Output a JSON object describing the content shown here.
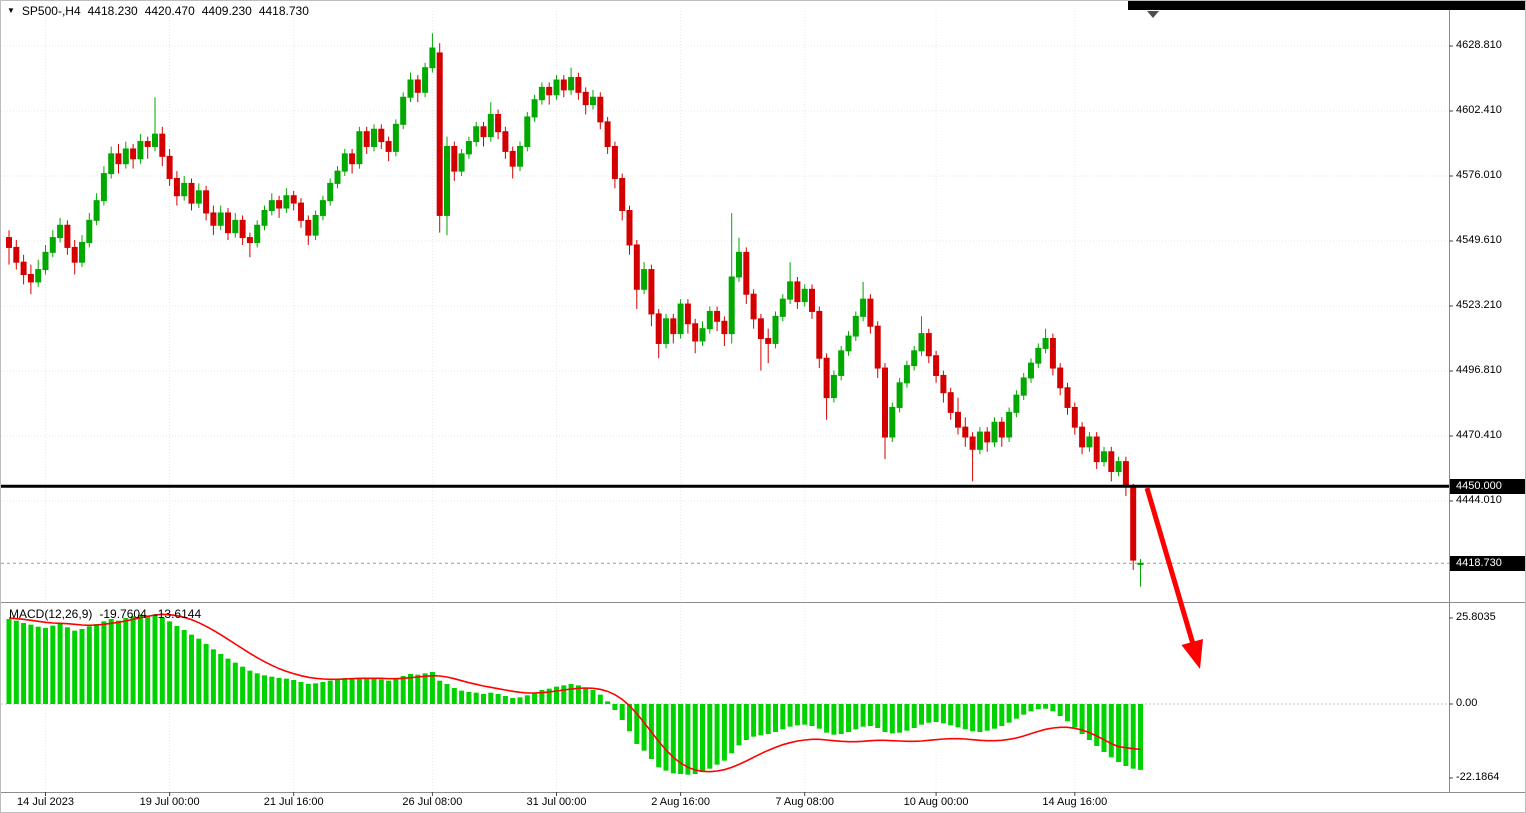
{
  "header": {
    "collapse_icon": "▼",
    "symbol_with_period": "SP500-,H4",
    "open": "4418.230",
    "high": "4420.470",
    "low": "4409.230",
    "close": "4418.730"
  },
  "price_axis": {
    "ticks": [
      "4628.810",
      "4602.410",
      "4576.010",
      "4549.610",
      "4523.210",
      "4496.810",
      "4470.410",
      "4444.010"
    ],
    "hline_badge": "4450.000",
    "price_badge": "4418.730"
  },
  "macd_axis": {
    "ticks": [
      "25.8035",
      "0.00",
      "-22.1864"
    ]
  },
  "chart_data": {
    "type": "candlestick",
    "symbol": "SP500-",
    "timeframe": "H4",
    "title": "SP500-,H4",
    "price_line": 4450.0,
    "last_price": 4418.73,
    "annotations": {
      "arrow": "red down-trend arrow from 4450 level pointing down-right"
    },
    "candles": [
      [
        4551,
        4554,
        4540,
        4547
      ],
      [
        4547,
        4550,
        4538,
        4541
      ],
      [
        4541,
        4544,
        4532,
        4536
      ],
      [
        4536,
        4540,
        4528,
        4533
      ],
      [
        4533,
        4542,
        4531,
        4538
      ],
      [
        4538,
        4548,
        4536,
        4545
      ],
      [
        4545,
        4554,
        4543,
        4551
      ],
      [
        4551,
        4559,
        4549,
        4556
      ],
      [
        4556,
        4558,
        4544,
        4547
      ],
      [
        4547,
        4550,
        4536,
        4541
      ],
      [
        4541,
        4552,
        4539,
        4549
      ],
      [
        4549,
        4561,
        4547,
        4558
      ],
      [
        4558,
        4569,
        4556,
        4566
      ],
      [
        4566,
        4580,
        4564,
        4577
      ],
      [
        4577,
        4588,
        4575,
        4585
      ],
      [
        4585,
        4589,
        4577,
        4581
      ],
      [
        4581,
        4590,
        4579,
        4587
      ],
      [
        4587,
        4589,
        4579,
        4583
      ],
      [
        4583,
        4593,
        4581,
        4590
      ],
      [
        4590,
        4592,
        4583,
        4588
      ],
      [
        4588,
        4608,
        4586,
        4593
      ],
      [
        4593,
        4596,
        4580,
        4584
      ],
      [
        4584,
        4587,
        4572,
        4575
      ],
      [
        4575,
        4578,
        4564,
        4568
      ],
      [
        4568,
        4576,
        4566,
        4573
      ],
      [
        4573,
        4575,
        4562,
        4565
      ],
      [
        4565,
        4573,
        4563,
        4570
      ],
      [
        4570,
        4572,
        4558,
        4561
      ],
      [
        4561,
        4564,
        4552,
        4556
      ],
      [
        4556,
        4564,
        4554,
        4561
      ],
      [
        4561,
        4563,
        4550,
        4553
      ],
      [
        4553,
        4561,
        4551,
        4558
      ],
      [
        4558,
        4560,
        4548,
        4551
      ],
      [
        4551,
        4553,
        4543,
        4549
      ],
      [
        4549,
        4558,
        4547,
        4556
      ],
      [
        4556,
        4564,
        4554,
        4562
      ],
      [
        4562,
        4569,
        4560,
        4566
      ],
      [
        4566,
        4568,
        4559,
        4563
      ],
      [
        4563,
        4571,
        4561,
        4568
      ],
      [
        4568,
        4570,
        4562,
        4565
      ],
      [
        4565,
        4567,
        4555,
        4558
      ],
      [
        4558,
        4560,
        4548,
        4552
      ],
      [
        4552,
        4562,
        4550,
        4560
      ],
      [
        4560,
        4568,
        4558,
        4566
      ],
      [
        4566,
        4575,
        4564,
        4573
      ],
      [
        4573,
        4580,
        4571,
        4578
      ],
      [
        4578,
        4587,
        4576,
        4585
      ],
      [
        4585,
        4587,
        4577,
        4581
      ],
      [
        4581,
        4596,
        4579,
        4594
      ],
      [
        4594,
        4596,
        4585,
        4588
      ],
      [
        4588,
        4597,
        4586,
        4595
      ],
      [
        4595,
        4597,
        4587,
        4590
      ],
      [
        4590,
        4592,
        4582,
        4586
      ],
      [
        4586,
        4599,
        4584,
        4597
      ],
      [
        4597,
        4610,
        4595,
        4608
      ],
      [
        4608,
        4618,
        4606,
        4615
      ],
      [
        4615,
        4617,
        4606,
        4610
      ],
      [
        4610,
        4622,
        4608,
        4620
      ],
      [
        4620,
        4634,
        4618,
        4628
      ],
      [
        4626,
        4630,
        4553,
        4560
      ],
      [
        4560,
        4592,
        4552,
        4588
      ],
      [
        4588,
        4590,
        4574,
        4578
      ],
      [
        4578,
        4587,
        4576,
        4585
      ],
      [
        4585,
        4592,
        4583,
        4590
      ],
      [
        4590,
        4598,
        4588,
        4596
      ],
      [
        4596,
        4598,
        4588,
        4592
      ],
      [
        4592,
        4606,
        4590,
        4601
      ],
      [
        4601,
        4603,
        4591,
        4594
      ],
      [
        4594,
        4596,
        4583,
        4586
      ],
      [
        4586,
        4588,
        4575,
        4580
      ],
      [
        4580,
        4590,
        4578,
        4588
      ],
      [
        4588,
        4602,
        4586,
        4600
      ],
      [
        4600,
        4609,
        4598,
        4607
      ],
      [
        4607,
        4614,
        4605,
        4612
      ],
      [
        4612,
        4614,
        4605,
        4609
      ],
      [
        4609,
        4617,
        4607,
        4615
      ],
      [
        4615,
        4617,
        4608,
        4611
      ],
      [
        4611,
        4620,
        4609,
        4616
      ],
      [
        4616,
        4618,
        4607,
        4610
      ],
      [
        4610,
        4612,
        4601,
        4605
      ],
      [
        4605,
        4611,
        4603,
        4608
      ],
      [
        4608,
        4610,
        4595,
        4598
      ],
      [
        4598,
        4600,
        4585,
        4588
      ],
      [
        4588,
        4590,
        4571,
        4575
      ],
      [
        4575,
        4577,
        4558,
        4562
      ],
      [
        4562,
        4564,
        4544,
        4548
      ],
      [
        4548,
        4550,
        4522,
        4530
      ],
      [
        4530,
        4541,
        4528,
        4538
      ],
      [
        4538,
        4540,
        4515,
        4520
      ],
      [
        4520,
        4522,
        4502,
        4508
      ],
      [
        4508,
        4520,
        4506,
        4518
      ],
      [
        4518,
        4520,
        4508,
        4512
      ],
      [
        4512,
        4526,
        4510,
        4524
      ],
      [
        4524,
        4526,
        4512,
        4516
      ],
      [
        4516,
        4518,
        4504,
        4509
      ],
      [
        4509,
        4517,
        4507,
        4514
      ],
      [
        4514,
        4523,
        4512,
        4521
      ],
      [
        4521,
        4523,
        4513,
        4517
      ],
      [
        4517,
        4519,
        4507,
        4512
      ],
      [
        4512,
        4561,
        4508,
        4535
      ],
      [
        4535,
        4551,
        4533,
        4545
      ],
      [
        4545,
        4547,
        4524,
        4528
      ],
      [
        4528,
        4530,
        4514,
        4518
      ],
      [
        4518,
        4520,
        4497,
        4510
      ],
      [
        4510,
        4514,
        4500,
        4508
      ],
      [
        4508,
        4521,
        4506,
        4519
      ],
      [
        4519,
        4528,
        4517,
        4526
      ],
      [
        4526,
        4541,
        4524,
        4533
      ],
      [
        4533,
        4535,
        4522,
        4525
      ],
      [
        4525,
        4532,
        4523,
        4530
      ],
      [
        4530,
        4532,
        4518,
        4521
      ],
      [
        4521,
        4523,
        4498,
        4502
      ],
      [
        4502,
        4504,
        4477,
        4486
      ],
      [
        4486,
        4497,
        4484,
        4495
      ],
      [
        4495,
        4507,
        4493,
        4505
      ],
      [
        4505,
        4513,
        4503,
        4511
      ],
      [
        4511,
        4521,
        4509,
        4519
      ],
      [
        4519,
        4533,
        4517,
        4526
      ],
      [
        4526,
        4528,
        4512,
        4515
      ],
      [
        4515,
        4517,
        4494,
        4498
      ],
      [
        4498,
        4500,
        4461,
        4470
      ],
      [
        4470,
        4484,
        4468,
        4482
      ],
      [
        4482,
        4494,
        4480,
        4492
      ],
      [
        4492,
        4501,
        4490,
        4499
      ],
      [
        4499,
        4507,
        4497,
        4505
      ],
      [
        4505,
        4519,
        4503,
        4512
      ],
      [
        4512,
        4514,
        4500,
        4503
      ],
      [
        4503,
        4505,
        4492,
        4495
      ],
      [
        4495,
        4497,
        4484,
        4488
      ],
      [
        4488,
        4490,
        4477,
        4480
      ],
      [
        4480,
        4486,
        4471,
        4474
      ],
      [
        4474,
        4478,
        4466,
        4470
      ],
      [
        4470,
        4472,
        4452,
        4465
      ],
      [
        4465,
        4474,
        4463,
        4472
      ],
      [
        4472,
        4474,
        4464,
        4468
      ],
      [
        4468,
        4478,
        4466,
        4476
      ],
      [
        4476,
        4478,
        4466,
        4470
      ],
      [
        4470,
        4482,
        4468,
        4480
      ],
      [
        4480,
        4489,
        4478,
        4487
      ],
      [
        4487,
        4496,
        4485,
        4494
      ],
      [
        4494,
        4502,
        4492,
        4500
      ],
      [
        4500,
        4508,
        4498,
        4506
      ],
      [
        4506,
        4514,
        4504,
        4510
      ],
      [
        4510,
        4512,
        4495,
        4498
      ],
      [
        4498,
        4500,
        4487,
        4490
      ],
      [
        4490,
        4492,
        4479,
        4482
      ],
      [
        4482,
        4484,
        4471,
        4474
      ],
      [
        4474,
        4476,
        4463,
        4466
      ],
      [
        4466,
        4472,
        4464,
        4470
      ],
      [
        4470,
        4472,
        4457,
        4460
      ],
      [
        4460,
        4466,
        4458,
        4464
      ],
      [
        4464,
        4466,
        4452,
        4456
      ],
      [
        4456,
        4462,
        4454,
        4460
      ],
      [
        4460,
        4462,
        4446,
        4450
      ],
      [
        4450,
        4451,
        4416,
        4420
      ],
      [
        4418.23,
        4420.47,
        4409.23,
        4418.73
      ]
    ],
    "time_ticks": [
      {
        "label": "14 Jul 2023",
        "index": 5
      },
      {
        "label": "19 Jul 00:00",
        "index": 22
      },
      {
        "label": "21 Jul 16:00",
        "index": 39
      },
      {
        "label": "26 Jul 08:00",
        "index": 58
      },
      {
        "label": "31 Jul 00:00",
        "index": 75
      },
      {
        "label": "2 Aug 16:00",
        "index": 92
      },
      {
        "label": "7 Aug 08:00",
        "index": 109
      },
      {
        "label": "10 Aug 00:00",
        "index": 127
      },
      {
        "label": "14 Aug 16:00",
        "index": 146
      }
    ],
    "macd": {
      "label": "MACD(12,26,9)",
      "macd_value": "-19.7604",
      "signal_value": "-13.6144",
      "histogram": [
        25.5,
        25.0,
        24.3,
        23.8,
        23.2,
        22.8,
        23.5,
        24.2,
        23.0,
        22.0,
        22.5,
        23.3,
        24.0,
        24.8,
        25.5,
        25.0,
        25.8,
        26.3,
        26.8,
        26.2,
        26.9,
        26.0,
        24.8,
        23.4,
        22.2,
        20.8,
        19.6,
        18.0,
        16.4,
        15.0,
        13.6,
        12.4,
        11.2,
        10.0,
        9.2,
        8.6,
        8.2,
        7.8,
        7.6,
        7.2,
        6.6,
        6.0,
        6.2,
        6.6,
        7.0,
        7.4,
        7.8,
        7.4,
        7.8,
        7.6,
        7.8,
        7.4,
        7.0,
        7.6,
        8.4,
        9.0,
        8.8,
        9.2,
        9.6,
        7.0,
        6.0,
        4.8,
        4.0,
        3.6,
        3.4,
        3.0,
        3.4,
        3.0,
        2.4,
        1.8,
        2.0,
        2.6,
        3.4,
        4.2,
        4.6,
        5.2,
        5.6,
        6.0,
        5.6,
        4.8,
        4.2,
        2.8,
        0.8,
        -1.8,
        -4.8,
        -8.2,
        -12.0,
        -14.0,
        -16.5,
        -19.0,
        -20.0,
        -20.8,
        -21.0,
        -21.2,
        -21.0,
        -20.4,
        -19.4,
        -18.2,
        -17.0,
        -14.8,
        -12.4,
        -10.8,
        -9.8,
        -9.4,
        -9.0,
        -8.4,
        -7.6,
        -6.8,
        -6.4,
        -6.2,
        -6.6,
        -7.4,
        -8.6,
        -9.2,
        -9.0,
        -8.4,
        -7.6,
        -6.8,
        -6.6,
        -7.2,
        -8.4,
        -8.8,
        -8.6,
        -8.0,
        -7.2,
        -6.2,
        -5.6,
        -5.4,
        -5.8,
        -6.4,
        -7.0,
        -7.6,
        -8.2,
        -8.4,
        -8.0,
        -7.4,
        -6.6,
        -5.6,
        -4.4,
        -3.2,
        -2.2,
        -1.6,
        -1.4,
        -2.2,
        -3.6,
        -5.2,
        -7.0,
        -9.0,
        -10.8,
        -12.6,
        -14.4,
        -16.0,
        -17.4,
        -18.6,
        -19.4,
        -19.7604
      ],
      "signal": [
        25.8,
        25.6,
        25.4,
        25.1,
        24.8,
        24.5,
        24.3,
        24.2,
        24.1,
        23.9,
        23.7,
        23.6,
        23.7,
        23.9,
        24.2,
        24.5,
        24.9,
        25.4,
        25.9,
        26.3,
        26.7,
        26.9,
        26.8,
        26.5,
        26.0,
        25.3,
        24.4,
        23.3,
        22.1,
        20.8,
        19.4,
        18.0,
        16.6,
        15.2,
        13.9,
        12.7,
        11.6,
        10.6,
        9.8,
        9.1,
        8.5,
        8.0,
        7.7,
        7.5,
        7.4,
        7.4,
        7.5,
        7.6,
        7.7,
        7.7,
        7.7,
        7.7,
        7.6,
        7.6,
        7.7,
        7.9,
        8.1,
        8.3,
        8.5,
        8.4,
        8.1,
        7.6,
        7.0,
        6.4,
        5.9,
        5.4,
        5.0,
        4.6,
        4.2,
        3.8,
        3.5,
        3.3,
        3.3,
        3.4,
        3.6,
        3.9,
        4.2,
        4.5,
        4.7,
        4.8,
        4.7,
        4.4,
        3.8,
        2.8,
        1.4,
        -0.5,
        -2.9,
        -5.6,
        -8.4,
        -11.2,
        -13.8,
        -16.0,
        -17.7,
        -19.0,
        -19.8,
        -20.2,
        -20.3,
        -20.1,
        -19.7,
        -19.0,
        -18.1,
        -17.1,
        -16.0,
        -14.9,
        -13.9,
        -13.0,
        -12.2,
        -11.6,
        -11.1,
        -10.8,
        -10.6,
        -10.6,
        -10.8,
        -11.0,
        -11.2,
        -11.3,
        -11.3,
        -11.2,
        -11.0,
        -10.9,
        -10.9,
        -11.0,
        -11.1,
        -11.2,
        -11.2,
        -11.1,
        -10.9,
        -10.7,
        -10.5,
        -10.4,
        -10.4,
        -10.5,
        -10.7,
        -10.9,
        -11.0,
        -11.0,
        -10.9,
        -10.6,
        -10.2,
        -9.6,
        -8.9,
        -8.2,
        -7.6,
        -7.2,
        -7.0,
        -7.0,
        -7.3,
        -7.8,
        -8.6,
        -9.6,
        -10.7,
        -11.9,
        -12.8,
        -13.1,
        -13.4,
        -13.6144
      ]
    },
    "colors": {
      "bull": "#00a800",
      "bear": "#d40000",
      "histogram": "#00d200",
      "signal_line": "#ff0000",
      "price_line": "#000000",
      "arrow": "#ff0000",
      "badge_bg": "#000000",
      "badge_text": "#ffffff",
      "grid": "#e7e7e7"
    }
  }
}
